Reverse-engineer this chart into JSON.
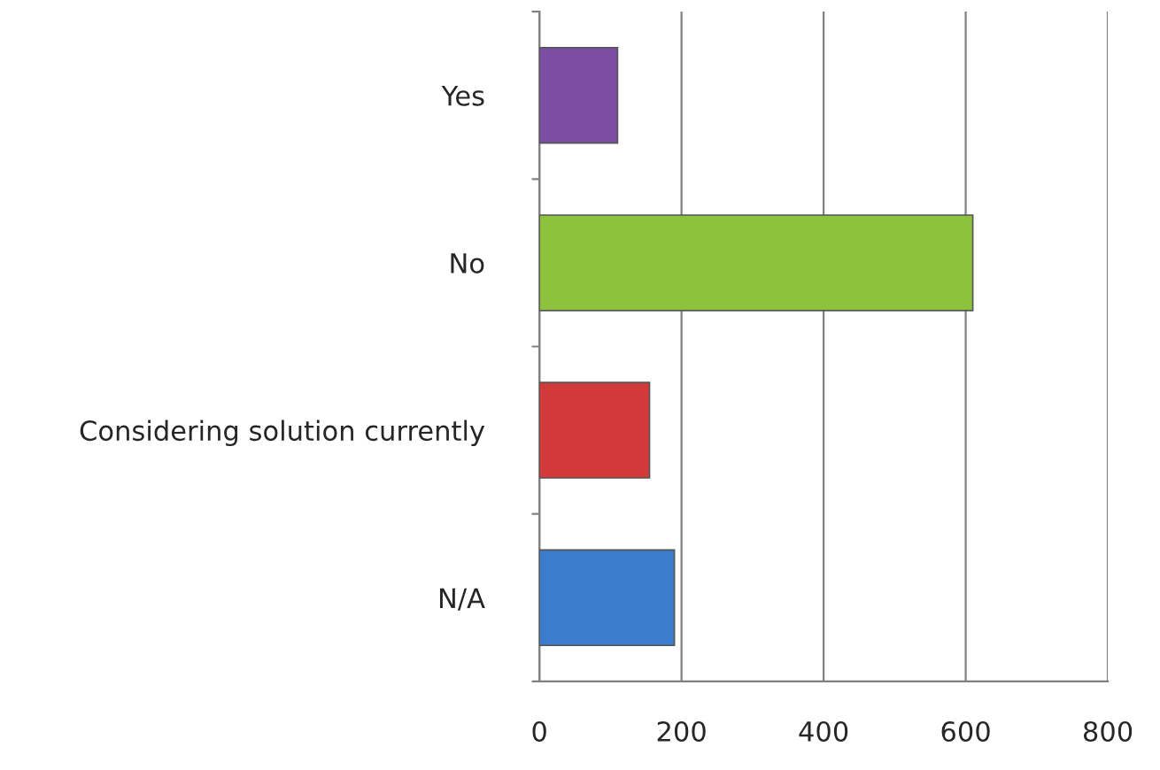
{
  "chart_data": {
    "type": "bar",
    "orientation": "horizontal",
    "categories": [
      "Yes",
      "No",
      "Considering solution currently",
      "N/A"
    ],
    "values": [
      110,
      610,
      155,
      190
    ],
    "colors": [
      "#7b4ea3",
      "#8dc23c",
      "#d23a3a",
      "#3b7dcc"
    ],
    "xlim": [
      0,
      800
    ],
    "xticks": [
      0,
      200,
      400,
      600,
      800
    ],
    "grid": "x"
  }
}
